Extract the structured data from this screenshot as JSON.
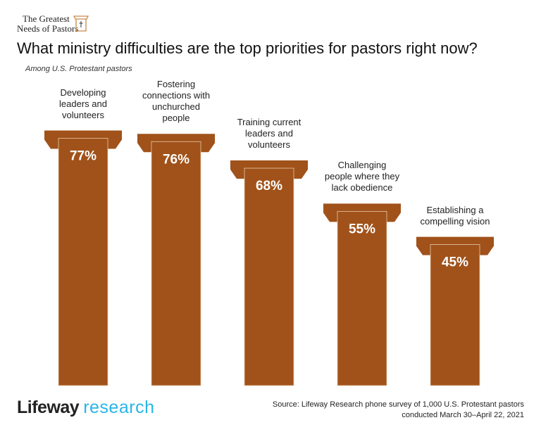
{
  "header": {
    "logo_line1": "The Greatest",
    "logo_line2": "Needs of Pastors"
  },
  "colors": {
    "bar": "#A0521A",
    "brand_research": "#29B5E8"
  },
  "chart_data": {
    "type": "bar",
    "title": "What ministry difficulties are the top priorities for pastors right now?",
    "subtitle": "Among U.S. Protestant pastors",
    "categories": [
      "Developing leaders and volunteers",
      "Fostering connections with unchurched people",
      "Training current leaders and volunteers",
      "Challenging people where they lack obedience",
      "Establishing a compelling vision"
    ],
    "category_lines": [
      [
        "Developing",
        "leaders and",
        "volunteers"
      ],
      [
        "Fostering",
        "connections with",
        "unchurched",
        "people"
      ],
      [
        "Training current",
        "leaders and",
        "volunteers"
      ],
      [
        "Challenging",
        "people where they",
        "lack obedience"
      ],
      [
        "Establishing a",
        "compelling vision"
      ]
    ],
    "values": [
      77,
      76,
      68,
      55,
      45
    ],
    "data_labels": [
      "77%",
      "76%",
      "68%",
      "55%",
      "45%"
    ],
    "unit": "%"
  },
  "footer": {
    "brand_1": "Lifeway",
    "brand_2": "research",
    "source_line1": "Source: Lifeway Research phone survey of 1,000 U.S. Protestant pastors",
    "source_line2": "conducted March 30–April 22, 2021"
  }
}
